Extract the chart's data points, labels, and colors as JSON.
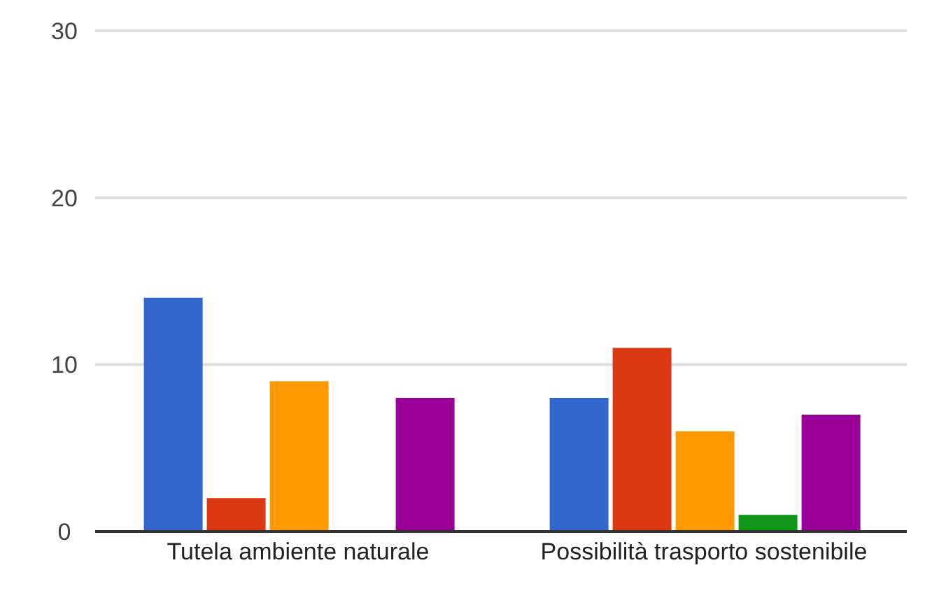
{
  "chart_data": {
    "type": "bar",
    "categories": [
      "Tutela ambiente naturale",
      "Possibilità trasporto sostenibile"
    ],
    "series": [
      {
        "color": "#3366cc",
        "values": [
          14,
          8
        ]
      },
      {
        "color": "#dc3912",
        "values": [
          2,
          11
        ]
      },
      {
        "color": "#ff9900",
        "values": [
          9,
          6
        ]
      },
      {
        "color": "#109618",
        "values": [
          0,
          1
        ]
      },
      {
        "color": "#990099",
        "values": [
          8,
          7
        ]
      }
    ],
    "ylim": [
      0,
      30
    ],
    "yticks": [
      0,
      10,
      20,
      30
    ],
    "grid": "y",
    "legend": false
  }
}
